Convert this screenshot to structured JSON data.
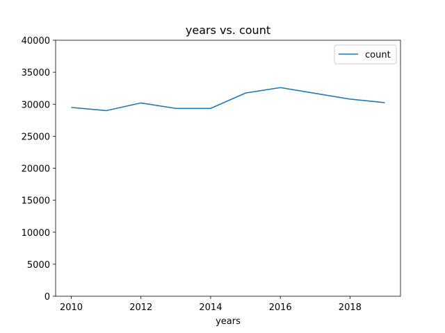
{
  "chart_data": {
    "type": "line",
    "title": "years vs. count",
    "xlabel": "years",
    "ylabel": "",
    "x": [
      2010,
      2011,
      2012,
      2013,
      2014,
      2015,
      2016,
      2017,
      2018,
      2019
    ],
    "series": [
      {
        "name": "count",
        "color": "#1f77b4",
        "values": [
          29500,
          29000,
          30200,
          29350,
          29350,
          31750,
          32600,
          31700,
          30800,
          30250
        ]
      }
    ],
    "xlim": [
      2009.55,
      2019.45
    ],
    "ylim": [
      0,
      40000
    ],
    "xticks": [
      2010,
      2012,
      2014,
      2016,
      2018
    ],
    "yticks": [
      0,
      5000,
      10000,
      15000,
      20000,
      25000,
      30000,
      35000,
      40000
    ],
    "legend": "top-right",
    "grid": false
  }
}
